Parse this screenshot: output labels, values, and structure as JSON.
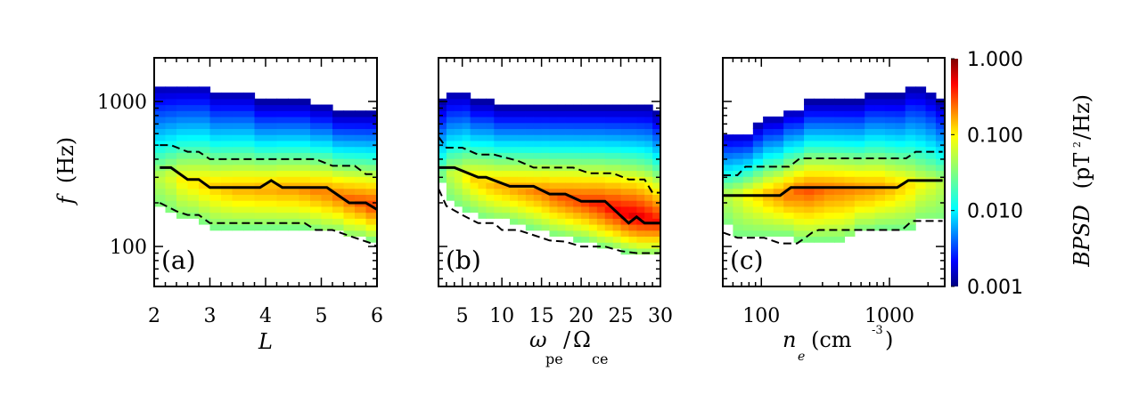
{
  "chart_data": [
    {
      "type": "heatmap",
      "panel_label": "(a)",
      "xlabel": "L",
      "ylabel": "f (Hz)",
      "xscale": "linear",
      "yscale": "log",
      "xlim": [
        2,
        6
      ],
      "ylim": [
        53,
        2000
      ],
      "xticks": [
        2,
        3,
        4,
        5,
        6
      ],
      "xtick_labels": [
        "2",
        "3",
        "4",
        "5",
        "6"
      ],
      "yticks": [
        100,
        1000
      ],
      "ytick_labels": [
        "100",
        "1000"
      ],
      "x_bins": [
        2.0,
        2.2,
        2.4,
        2.6,
        2.8,
        3.0,
        3.2,
        3.4,
        3.6,
        3.8,
        4.0,
        4.2,
        4.4,
        4.6,
        4.8,
        5.0,
        5.2,
        5.4,
        5.6,
        5.8,
        6.0
      ],
      "upper_edge_hz": [
        1300,
        1300,
        1300,
        1300,
        1300,
        1150,
        1150,
        1150,
        1150,
        1000,
        1000,
        1000,
        1000,
        1000,
        930,
        930,
        830,
        830,
        830,
        830
      ],
      "lower_edge_hz": [
        185,
        170,
        155,
        155,
        145,
        135,
        135,
        135,
        135,
        135,
        135,
        135,
        135,
        135,
        130,
        125,
        125,
        115,
        115,
        110
      ],
      "peak_log_frequency_hz": [
        300,
        300,
        290,
        280,
        270,
        260,
        255,
        250,
        250,
        250,
        250,
        250,
        250,
        245,
        240,
        235,
        225,
        215,
        205,
        195
      ],
      "peak_power": [
        0.05,
        0.06,
        0.08,
        0.09,
        0.1,
        0.11,
        0.12,
        0.13,
        0.13,
        0.14,
        0.14,
        0.15,
        0.15,
        0.16,
        0.17,
        0.18,
        0.2,
        0.22,
        0.25,
        0.28
      ],
      "lines": [
        {
          "name": "median",
          "style": "solid",
          "x": [
            2.1,
            2.3,
            2.6,
            2.8,
            3.0,
            3.9,
            4.1,
            4.3,
            5.1,
            5.5,
            5.8,
            6.0
          ],
          "y": [
            350,
            350,
            290,
            290,
            255,
            255,
            285,
            255,
            255,
            200,
            200,
            180
          ]
        },
        {
          "name": "upper quartile",
          "style": "dashed",
          "x": [
            2.1,
            2.3,
            2.6,
            2.8,
            3.0,
            4.9,
            5.2,
            5.6,
            5.8,
            6.0
          ],
          "y": [
            500,
            500,
            450,
            450,
            400,
            400,
            360,
            360,
            315,
            315
          ]
        },
        {
          "name": "lower quartile",
          "style": "dashed",
          "x": [
            2.1,
            2.4,
            2.6,
            2.8,
            3.0,
            4.7,
            4.9,
            5.2,
            5.6,
            5.9,
            6.0
          ],
          "y": [
            200,
            175,
            165,
            165,
            145,
            145,
            130,
            130,
            115,
            105,
            100
          ]
        }
      ]
    },
    {
      "type": "heatmap",
      "panel_label": "(b)",
      "xlabel": "ω_pe/Ω_ce",
      "ylabel": "",
      "xscale": "linear",
      "yscale": "log",
      "xlim": [
        2,
        30
      ],
      "ylim": [
        53,
        2000
      ],
      "xticks": [
        5,
        10,
        15,
        20,
        25,
        30
      ],
      "xtick_labels": [
        "5",
        "10",
        "15",
        "20",
        "25",
        "30"
      ],
      "yticks": [
        100,
        1000
      ],
      "ytick_labels": [
        "",
        ""
      ],
      "x_bins": [
        2,
        3,
        4,
        5,
        6,
        7,
        8,
        9,
        10,
        11,
        12,
        13,
        14,
        15,
        16,
        17,
        18,
        19,
        20,
        21,
        22,
        23,
        24,
        25,
        26,
        27,
        28,
        29,
        30
      ],
      "upper_edge_hz": [
        1000,
        1150,
        1150,
        1150,
        1000,
        1000,
        1000,
        920,
        920,
        920,
        920,
        920,
        920,
        920,
        920,
        920,
        920,
        920,
        920,
        920,
        920,
        920,
        920,
        920,
        920,
        920,
        920,
        830
      ],
      "lower_edge_hz": [
        280,
        210,
        190,
        180,
        170,
        160,
        155,
        150,
        150,
        145,
        140,
        135,
        130,
        125,
        120,
        118,
        115,
        112,
        110,
        105,
        100,
        98,
        95,
        92,
        90,
        88,
        88,
        88
      ],
      "peak_log_frequency_hz": [
        330,
        320,
        310,
        300,
        290,
        280,
        270,
        265,
        260,
        255,
        250,
        245,
        240,
        235,
        225,
        220,
        215,
        210,
        205,
        200,
        195,
        185,
        180,
        170,
        165,
        160,
        155,
        150
      ],
      "peak_power": [
        0.03,
        0.05,
        0.06,
        0.08,
        0.1,
        0.11,
        0.12,
        0.13,
        0.14,
        0.15,
        0.16,
        0.17,
        0.18,
        0.2,
        0.22,
        0.24,
        0.26,
        0.28,
        0.3,
        0.33,
        0.36,
        0.4,
        0.44,
        0.48,
        0.52,
        0.5,
        0.45,
        0.4
      ],
      "lines": [
        {
          "name": "median",
          "style": "solid",
          "x": [
            2,
            4,
            7,
            8,
            11,
            14,
            16,
            18,
            20,
            23,
            26,
            27,
            28,
            30
          ],
          "y": [
            350,
            350,
            300,
            300,
            260,
            260,
            230,
            230,
            205,
            205,
            145,
            160,
            145,
            145
          ]
        },
        {
          "name": "upper quartile",
          "style": "dashed",
          "x": [
            2,
            3,
            5,
            7,
            9,
            12,
            14,
            19,
            21,
            24,
            26,
            28,
            29,
            30
          ],
          "y": [
            570,
            480,
            480,
            430,
            430,
            390,
            350,
            350,
            320,
            320,
            290,
            290,
            235,
            235
          ]
        },
        {
          "name": "lower quartile",
          "style": "dashed",
          "x": [
            2,
            3,
            5,
            7,
            9,
            10,
            12,
            15,
            16,
            18,
            20,
            23,
            25,
            27,
            28,
            30
          ],
          "y": [
            250,
            190,
            165,
            145,
            145,
            130,
            130,
            115,
            110,
            108,
            100,
            100,
            93,
            90,
            90,
            90
          ]
        }
      ]
    },
    {
      "type": "heatmap",
      "panel_label": "(c)",
      "xlabel": "n_e (cm^-3)",
      "ylabel": "",
      "xscale": "log",
      "yscale": "log",
      "xlim": [
        50,
        2700
      ],
      "ylim": [
        53,
        2000
      ],
      "xticks": [
        100,
        1000
      ],
      "xtick_labels": [
        "100",
        "1000"
      ],
      "yticks": [
        100,
        1000
      ],
      "ytick_labels": [
        "",
        ""
      ],
      "x_bins": [
        50,
        60,
        72,
        86,
        103,
        124,
        149,
        179,
        215,
        258,
        309,
        371,
        445,
        534,
        641,
        769,
        923,
        1108,
        1329,
        1595,
        1914,
        2297,
        2700
      ],
      "upper_edge_hz": [
        620,
        620,
        620,
        700,
        780,
        780,
        880,
        880,
        1000,
        1000,
        1000,
        1000,
        1000,
        1000,
        1100,
        1100,
        1100,
        1100,
        1250,
        1250,
        1150,
        1000
      ],
      "lower_edge_hz": [
        140,
        120,
        120,
        120,
        120,
        120,
        120,
        110,
        110,
        110,
        110,
        110,
        115,
        130,
        130,
        135,
        135,
        135,
        135,
        150,
        150,
        150
      ],
      "peak_log_frequency_hz": [
        230,
        230,
        230,
        230,
        230,
        230,
        230,
        240,
        240,
        245,
        250,
        250,
        250,
        250,
        250,
        255,
        255,
        260,
        260,
        265,
        270,
        275
      ],
      "peak_power": [
        0.05,
        0.06,
        0.08,
        0.1,
        0.13,
        0.16,
        0.2,
        0.22,
        0.24,
        0.22,
        0.2,
        0.19,
        0.18,
        0.17,
        0.16,
        0.15,
        0.13,
        0.11,
        0.09,
        0.07,
        0.06,
        0.05
      ],
      "lines": [
        {
          "name": "median",
          "style": "solid",
          "x": [
            50,
            140,
            170,
            1150,
            1400,
            2600
          ],
          "y": [
            225,
            225,
            255,
            255,
            285,
            285
          ]
        },
        {
          "name": "upper quartile",
          "style": "dashed",
          "x": [
            50,
            65,
            75,
            165,
            200,
            1350,
            1600,
            2600
          ],
          "y": [
            310,
            310,
            355,
            355,
            405,
            405,
            450,
            450
          ]
        },
        {
          "name": "lower quartile",
          "style": "dashed",
          "x": [
            50,
            65,
            105,
            140,
            190,
            220,
            250,
            280,
            1250,
            1500,
            2600
          ],
          "y": [
            125,
            115,
            115,
            105,
            105,
            115,
            125,
            130,
            130,
            150,
            150
          ]
        }
      ]
    }
  ],
  "colorbar": {
    "title": "BPSD",
    "units": "(pT²/Hz)",
    "scale": "log",
    "range": [
      0.001,
      1.0
    ],
    "ticks": [
      1.0,
      0.1,
      0.01,
      0.001
    ],
    "tick_labels": [
      "1.000",
      "0.100",
      "0.010",
      "0.001"
    ],
    "colormap": "jet"
  },
  "labels": {
    "ylabel_symbol": "f",
    "ylabel_unit": "(Hz)",
    "panel_a_xlabel": "L",
    "panel_b_xlabel_omega": "ω",
    "panel_b_xlabel_sub1": "pe",
    "panel_b_xlabel_slash": "/",
    "panel_b_xlabel_Omega": "Ω",
    "panel_b_xlabel_sub2": "ce",
    "panel_c_xlabel_n": "n",
    "panel_c_xlabel_sub": "e",
    "panel_c_xlabel_unit": "(cm",
    "panel_c_xlabel_exp": "-3",
    "panel_c_xlabel_close": ")",
    "colorbar_title": "BPSD",
    "colorbar_unit": "(pT",
    "colorbar_unit_exp": "2",
    "colorbar_unit_rest": "/Hz)"
  }
}
